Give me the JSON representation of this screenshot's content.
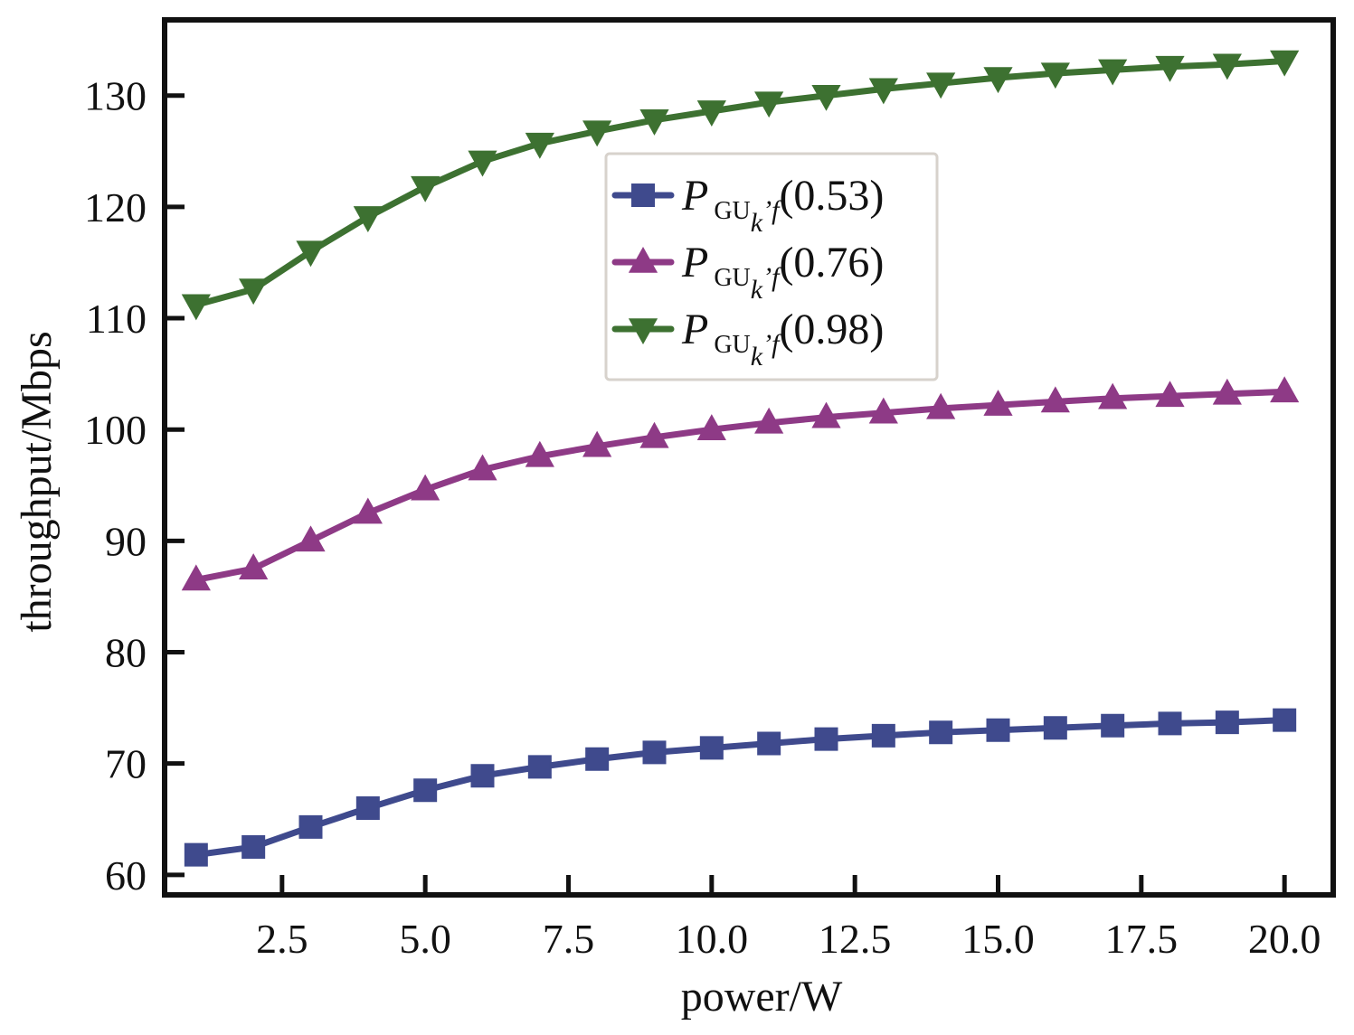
{
  "chart_data": {
    "type": "line",
    "xlabel": "power/W",
    "ylabel": "throughput/Mbps",
    "xlim": [
      0.45,
      20.85
    ],
    "ylim": [
      58.2,
      136.8
    ],
    "x_ticks": [
      2.5,
      5.0,
      7.5,
      10.0,
      12.5,
      15.0,
      17.5,
      20.0
    ],
    "x_tick_labels": [
      "2.5",
      "5.0",
      "7.5",
      "10.0",
      "12.5",
      "15.0",
      "17.5",
      "20.0"
    ],
    "y_ticks": [
      60,
      70,
      80,
      90,
      100,
      110,
      120,
      130
    ],
    "y_tick_labels": [
      "60",
      "70",
      "80",
      "90",
      "100",
      "110",
      "120",
      "130"
    ],
    "x": [
      1,
      2,
      3,
      4,
      5,
      6,
      7,
      8,
      9,
      10,
      11,
      12,
      13,
      14,
      15,
      16,
      17,
      18,
      19,
      20
    ],
    "grid": false,
    "legend_position": "upper-center",
    "series": [
      {
        "name": "(0.53)",
        "legend_symbol": "P",
        "legend_subscript": "GU",
        "legend_subscript_sub": "k",
        "legend_subscript_tail": "’f",
        "color": "#3f4a8d",
        "marker": "square",
        "values": [
          61.8,
          62.5,
          64.3,
          66.0,
          67.6,
          68.9,
          69.7,
          70.4,
          71.0,
          71.4,
          71.8,
          72.2,
          72.5,
          72.8,
          73.0,
          73.2,
          73.4,
          73.6,
          73.7,
          73.9
        ]
      },
      {
        "name": "(0.76)",
        "legend_symbol": "P",
        "legend_subscript": "GU",
        "legend_subscript_sub": "k",
        "legend_subscript_tail": "’f",
        "color": "#8e3a86",
        "marker": "triangle-up",
        "values": [
          86.5,
          87.5,
          90.0,
          92.5,
          94.6,
          96.4,
          97.6,
          98.5,
          99.3,
          100.0,
          100.6,
          101.1,
          101.5,
          101.9,
          102.2,
          102.5,
          102.8,
          103.0,
          103.2,
          103.4
        ]
      },
      {
        "name": "(0.98)",
        "legend_symbol": "P",
        "legend_subscript": "GU",
        "legend_subscript_sub": "k",
        "legend_subscript_tail": "’f",
        "color": "#3d7131",
        "marker": "triangle-down",
        "values": [
          111.2,
          112.6,
          116.0,
          119.1,
          121.8,
          124.1,
          125.7,
          126.8,
          127.8,
          128.6,
          129.4,
          130.0,
          130.6,
          131.1,
          131.6,
          132.0,
          132.3,
          132.6,
          132.8,
          133.1
        ]
      }
    ]
  }
}
